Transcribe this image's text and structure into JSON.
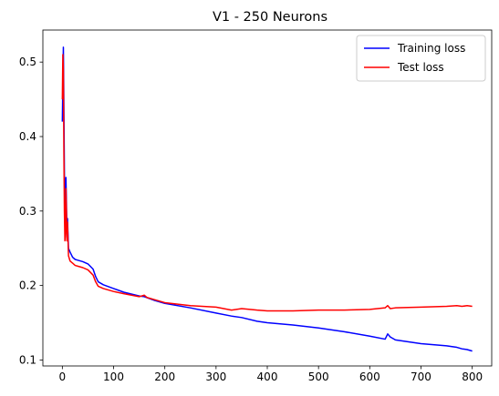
{
  "chart_data": {
    "type": "line",
    "title": "V1 - 250 Neurons",
    "xlabel": "",
    "ylabel": "",
    "xlim": [
      -38,
      838
    ],
    "ylim": [
      0.092,
      0.543
    ],
    "xticks": [
      0,
      100,
      200,
      300,
      400,
      500,
      600,
      700,
      800
    ],
    "yticks": [
      0.1,
      0.2,
      0.3,
      0.4,
      0.5
    ],
    "grid": false,
    "legend_placement": "top-right",
    "series": [
      {
        "name": "Training loss",
        "color": "#0000ff",
        "x": [
          0,
          1,
          2,
          3,
          4,
          5,
          6,
          7,
          8,
          9,
          10,
          12,
          15,
          20,
          25,
          30,
          40,
          50,
          60,
          65,
          70,
          80,
          100,
          120,
          150,
          160,
          180,
          200,
          250,
          300,
          330,
          350,
          380,
          400,
          450,
          500,
          550,
          600,
          630,
          635,
          640,
          650,
          700,
          750,
          770,
          780,
          790,
          800
        ],
        "values": [
          0.42,
          0.47,
          0.52,
          0.44,
          0.35,
          0.29,
          0.28,
          0.345,
          0.31,
          0.265,
          0.29,
          0.25,
          0.245,
          0.238,
          0.235,
          0.234,
          0.232,
          0.229,
          0.222,
          0.212,
          0.205,
          0.201,
          0.196,
          0.191,
          0.186,
          0.185,
          0.18,
          0.176,
          0.17,
          0.163,
          0.159,
          0.157,
          0.152,
          0.15,
          0.147,
          0.143,
          0.138,
          0.132,
          0.128,
          0.135,
          0.131,
          0.127,
          0.122,
          0.119,
          0.117,
          0.115,
          0.114,
          0.112
        ]
      },
      {
        "name": "Test loss",
        "color": "#ff0000",
        "x": [
          0,
          1,
          2,
          3,
          4,
          5,
          6,
          7,
          8,
          9,
          10,
          12,
          15,
          20,
          25,
          30,
          40,
          50,
          60,
          65,
          70,
          80,
          100,
          120,
          150,
          160,
          165,
          180,
          200,
          250,
          300,
          330,
          350,
          380,
          400,
          450,
          500,
          550,
          600,
          630,
          635,
          640,
          650,
          700,
          750,
          770,
          780,
          790,
          800
        ],
        "values": [
          0.45,
          0.51,
          0.49,
          0.38,
          0.3,
          0.26,
          0.27,
          0.33,
          0.3,
          0.26,
          0.285,
          0.24,
          0.233,
          0.23,
          0.227,
          0.226,
          0.224,
          0.221,
          0.214,
          0.205,
          0.199,
          0.196,
          0.192,
          0.189,
          0.185,
          0.187,
          0.184,
          0.181,
          0.177,
          0.173,
          0.171,
          0.167,
          0.169,
          0.167,
          0.166,
          0.166,
          0.167,
          0.167,
          0.168,
          0.17,
          0.173,
          0.169,
          0.17,
          0.171,
          0.172,
          0.173,
          0.172,
          0.173,
          0.172
        ]
      }
    ]
  }
}
